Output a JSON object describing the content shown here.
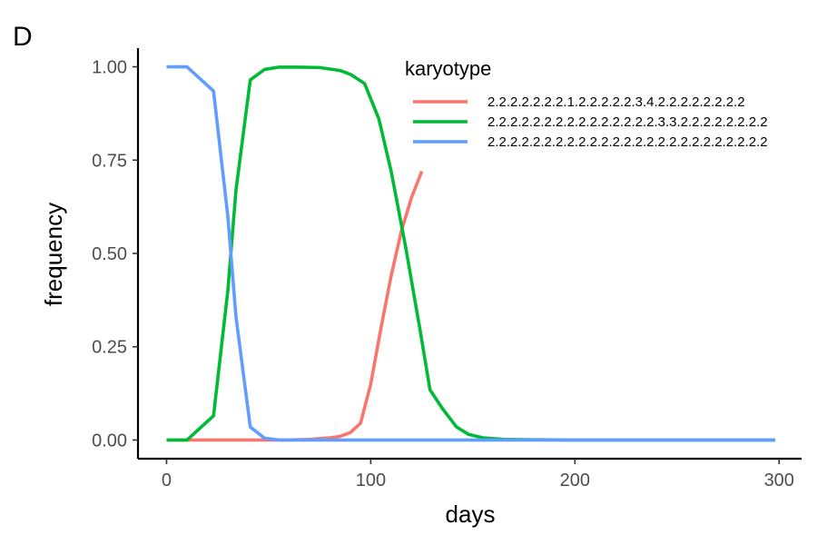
{
  "chart_data": {
    "type": "line",
    "panel_label": "D",
    "title": "",
    "xlabel": "days",
    "ylabel": "frequency",
    "xlim": [
      -14,
      311
    ],
    "ylim": [
      -0.05,
      1.05
    ],
    "x_ticks": [
      0,
      100,
      200,
      300
    ],
    "x_tick_labels": [
      "0",
      "100",
      "200",
      "300"
    ],
    "y_ticks": [
      0,
      0.25,
      0.5,
      0.75,
      1.0
    ],
    "y_tick_labels": [
      "0.00",
      "0.25",
      "0.50",
      "0.75",
      "1.00"
    ],
    "grid": false,
    "legend": {
      "title": "karyotype",
      "placement": "top-right-inside"
    },
    "series": [
      {
        "name": "2.2.2.2.2.2.2.1.2.2.2.2.2.3.4.2.2.2.2.2.2.2.2",
        "color": "#F8766D",
        "x": [
          0,
          10,
          20,
          30,
          40,
          50,
          60,
          70,
          80,
          85,
          90,
          95,
          100,
          105,
          110,
          115,
          120,
          125
        ],
        "y": [
          0,
          0,
          0,
          0,
          0,
          0,
          0,
          0.002,
          0.006,
          0.01,
          0.02,
          0.045,
          0.15,
          0.3,
          0.44,
          0.56,
          0.65,
          0.72
        ]
      },
      {
        "name": "2.2.2.2.2.2.2.2.2.2.2.2.2.2.2.3.3.2.2.2.2.2.2.2.2",
        "color": "#00BA38",
        "x": [
          0,
          10,
          23,
          30,
          34,
          41,
          48,
          55,
          65,
          75,
          85,
          90,
          97,
          104,
          110,
          117,
          124,
          129,
          135,
          142,
          148,
          155,
          165,
          175,
          200,
          250,
          298
        ],
        "y": [
          0,
          0,
          0.065,
          0.4,
          0.67,
          0.965,
          0.993,
          0.999,
          0.999,
          0.998,
          0.99,
          0.98,
          0.955,
          0.86,
          0.72,
          0.52,
          0.3,
          0.135,
          0.085,
          0.035,
          0.015,
          0.006,
          0.002,
          0.001,
          0,
          0,
          0
        ]
      },
      {
        "name": "2.2.2.2.2.2.2.2.2.2.2.2.2.2.2.2.2.2.2.2.2.2.2.2.2",
        "color": "#619CFF",
        "x": [
          0,
          10,
          23,
          30,
          34,
          41,
          48,
          55,
          65,
          100,
          150,
          200,
          250,
          298
        ],
        "y": [
          1,
          1,
          0.935,
          0.6,
          0.33,
          0.035,
          0.005,
          0,
          0,
          0,
          0,
          0,
          0,
          0
        ]
      }
    ]
  }
}
